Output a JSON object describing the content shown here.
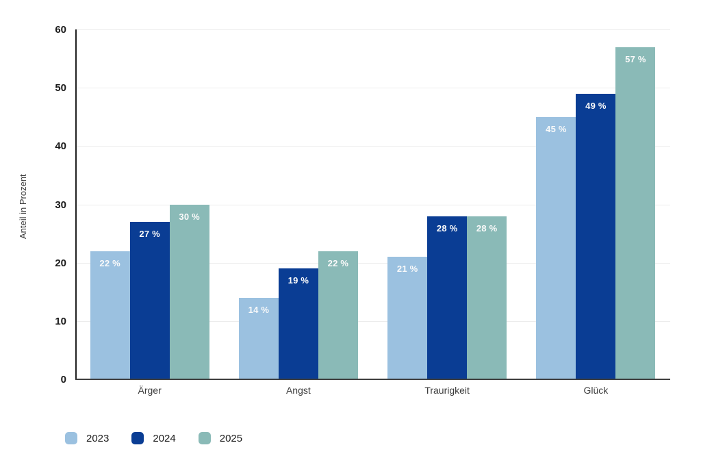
{
  "chart_data": {
    "type": "bar",
    "title": "",
    "xlabel": "",
    "ylabel": "Anteil in Prozent",
    "categories": [
      "Ärger",
      "Angst",
      "Traurigkeit",
      "Glück"
    ],
    "series": [
      {
        "name": "2023",
        "color": "#9BC1E0",
        "values": [
          22,
          14,
          21,
          45
        ]
      },
      {
        "name": "2024",
        "color": "#0A3D94",
        "values": [
          27,
          19,
          28,
          49
        ]
      },
      {
        "name": "2025",
        "color": "#8ABAB7",
        "values": [
          30,
          22,
          28,
          57
        ]
      }
    ],
    "value_labels": [
      [
        "22 %",
        "14 %",
        "21 %",
        "45 %"
      ],
      [
        "27 %",
        "19 %",
        "28 %",
        "49 %"
      ],
      [
        "30 %",
        "22 %",
        "28 %",
        "57 %"
      ]
    ],
    "ylim": [
      0,
      60
    ],
    "yticks": [
      0,
      10,
      20,
      30,
      40,
      50,
      60
    ],
    "grid": true,
    "legend_position": "bottom"
  },
  "styles": {
    "background": "#ffffff",
    "gridline_color": "#ececec",
    "y_axis_line_color": "#1f1f1f",
    "baseline_color": "#3f3f3f",
    "tick_label_color": "#1a1a1a",
    "category_label_color": "#3c3c3c",
    "value_label_color": "#fafafa",
    "legend_label_color": "#1a1a1a"
  }
}
